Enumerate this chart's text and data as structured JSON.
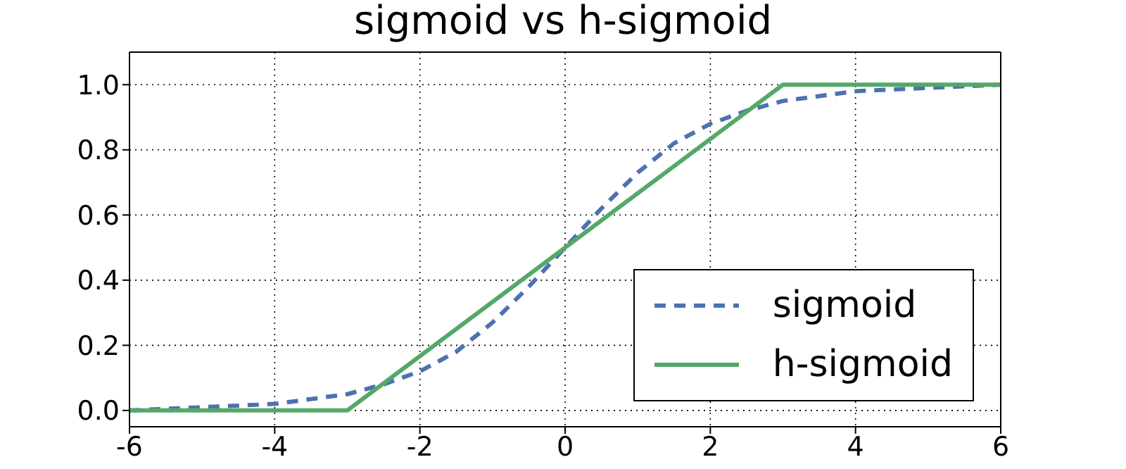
{
  "chart_data": {
    "type": "line",
    "title": "sigmoid vs h-sigmoid",
    "series": [
      {
        "name": "sigmoid",
        "color": "#4c72b0",
        "line_style": "dashed",
        "x": [
          -6,
          -5,
          -4,
          -3,
          -2.5,
          -2,
          -1.5,
          -1,
          -0.5,
          0,
          0.5,
          1,
          1.5,
          2,
          2.5,
          3,
          4,
          5,
          6
        ],
        "values": [
          0.0,
          0.01,
          0.02,
          0.05,
          0.08,
          0.12,
          0.18,
          0.27,
          0.38,
          0.5,
          0.62,
          0.73,
          0.82,
          0.88,
          0.92,
          0.95,
          0.98,
          0.99,
          1.0
        ]
      },
      {
        "name": "h-sigmoid",
        "color": "#55a868",
        "line_style": "solid",
        "x": [
          -6,
          -3,
          3,
          6
        ],
        "values": [
          0,
          0,
          1,
          1
        ]
      }
    ],
    "xlim": [
      -6,
      6
    ],
    "xticks": [
      -6,
      -4,
      -2,
      0,
      2,
      4,
      6
    ],
    "ylim": [
      -0.05,
      1.1
    ],
    "yticks": [
      {
        "value": 0,
        "label": "0.0"
      },
      {
        "value": 0.2,
        "label": "0.2"
      },
      {
        "value": 0.4,
        "label": "0.4"
      },
      {
        "value": 0.6,
        "label": "0.6"
      },
      {
        "value": 0.8,
        "label": "0.8"
      },
      {
        "value": 1,
        "label": "1.0"
      }
    ],
    "grid": true,
    "legend": "bottom right",
    "marker": "none"
  }
}
